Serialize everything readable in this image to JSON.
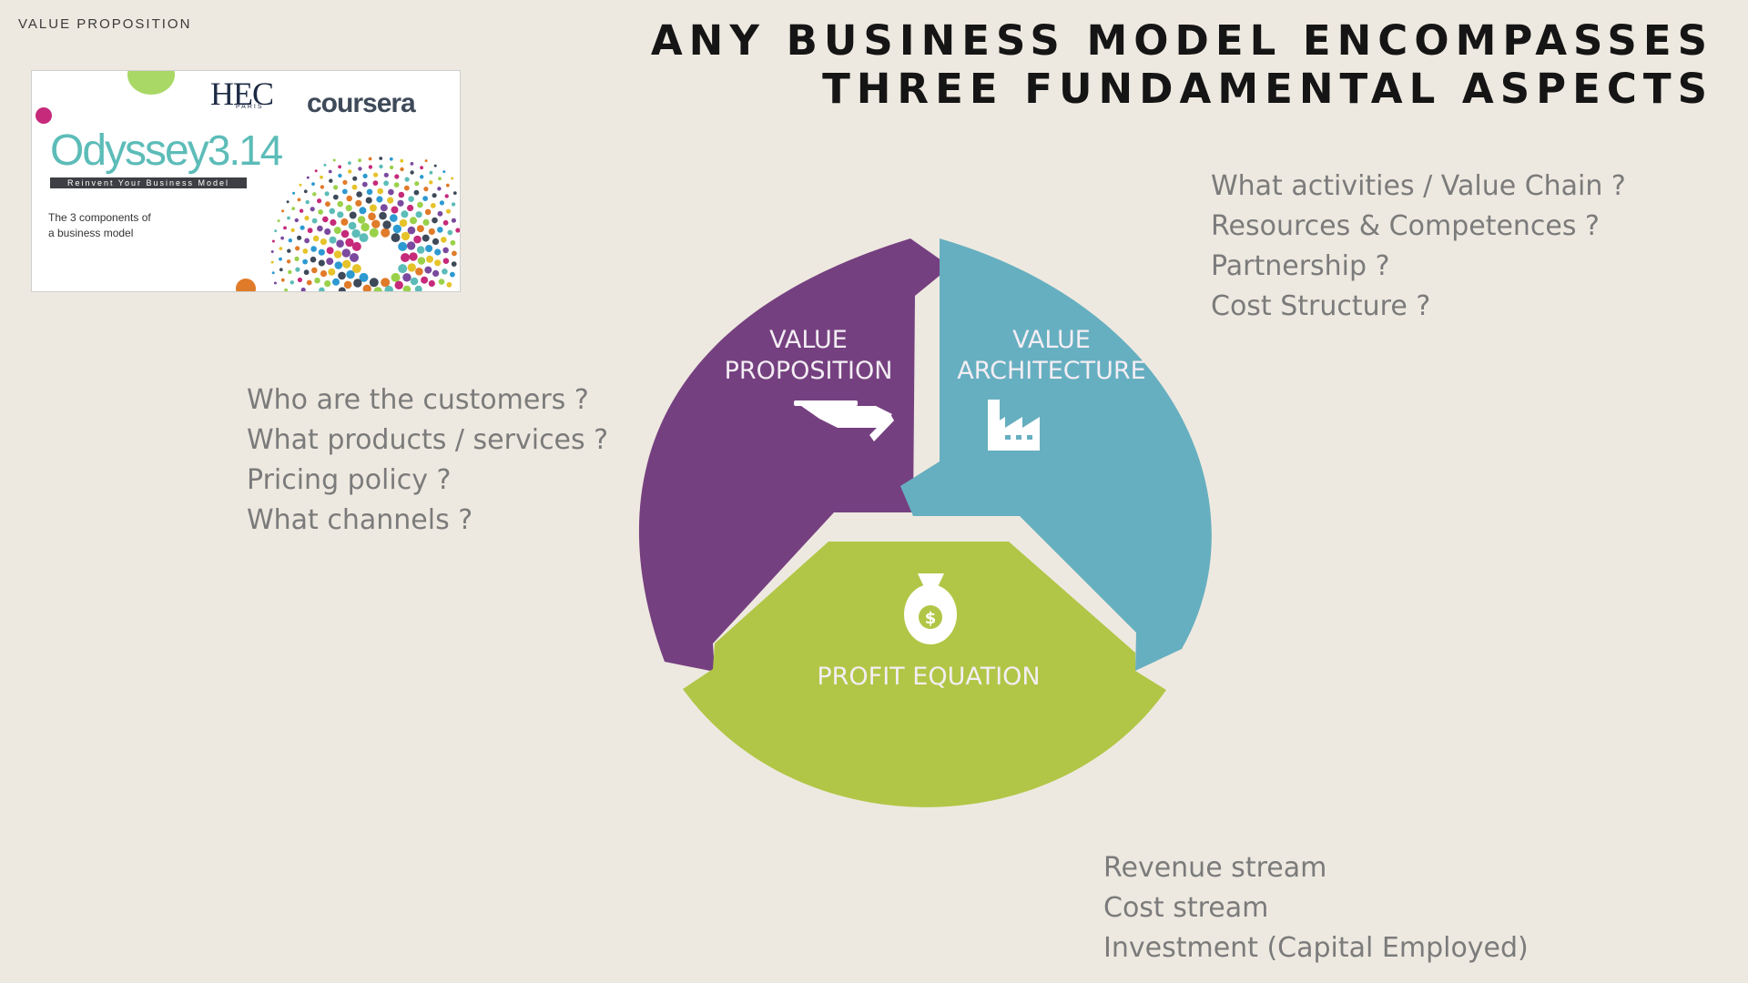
{
  "header": {
    "section_label": "VALUE PROPOSITION",
    "title_line1": "ANY BUSINESS MODEL ENCOMPASSES",
    "title_line2": "THREE FUNDAMENTAL ASPECTS"
  },
  "thumbnail": {
    "institution": "HEC",
    "institution_sub": "PARIS",
    "platform": "coursera",
    "course_name": "Odyssey",
    "course_number": "3.14",
    "banner": "Reinvent Your Business Model",
    "caption_line1": "The 3 components of",
    "caption_line2": "a business model"
  },
  "diagram": {
    "segments": [
      {
        "line1": "VALUE",
        "line2": "PROPOSITION",
        "color": "#754080",
        "icon": "serving-hand-icon"
      },
      {
        "line1": "VALUE",
        "line2": "ARCHITECTURE",
        "color": "#66afc0",
        "icon": "factory-icon"
      },
      {
        "line1": "PROFIT EQUATION",
        "color": "#b1c646",
        "icon": "money-bag-icon"
      }
    ]
  },
  "questions": {
    "value_proposition": [
      "Who are the customers ?",
      "What products / services ?",
      "Pricing policy ?",
      "What channels ?"
    ],
    "value_architecture": [
      "What activities / Value Chain ?",
      "Resources & Competences ?",
      "Partnership ?",
      "Cost Structure ?"
    ],
    "profit_equation": [
      "Revenue stream",
      "Cost stream",
      "Investment (Capital Employed)"
    ]
  }
}
